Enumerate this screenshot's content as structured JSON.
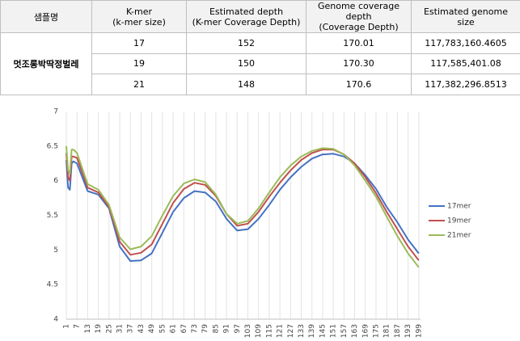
{
  "table": {
    "header": [
      "샘플명",
      "K-mer\n(k-mer size)",
      "Estimated depth\n(K-mer Coverage Depth)",
      "Genome coverage depth\n(Coverage Depth)",
      "Estimated genome\nsize"
    ],
    "sample": "멋조롱박딱정벌레",
    "rows": [
      [
        "17",
        "152",
        "170.01",
        "117,783,160.4605"
      ],
      [
        "19",
        "150",
        "170.30",
        "117,585,401.08"
      ],
      [
        "21",
        "148",
        "170.6",
        "117,382,296.8513"
      ]
    ]
  },
  "chart_data": {
    "type": "line",
    "x": [
      1,
      2,
      3,
      4,
      5,
      7,
      13,
      19,
      25,
      31,
      37,
      43,
      49,
      55,
      61,
      67,
      73,
      79,
      85,
      91,
      97,
      103,
      109,
      115,
      121,
      127,
      133,
      139,
      145,
      151,
      157,
      163,
      169,
      175,
      181,
      187,
      193,
      199
    ],
    "series": [
      {
        "name": "17mer",
        "color": "#4472c4",
        "values": [
          6.3,
          5.9,
          5.87,
          6.25,
          6.28,
          6.25,
          5.85,
          5.8,
          5.6,
          5.05,
          4.84,
          4.85,
          4.95,
          5.25,
          5.55,
          5.75,
          5.85,
          5.83,
          5.7,
          5.45,
          5.28,
          5.3,
          5.45,
          5.65,
          5.87,
          6.05,
          6.2,
          6.32,
          6.38,
          6.39,
          6.35,
          6.25,
          6.08,
          5.88,
          5.62,
          5.4,
          5.15,
          4.95
        ]
      },
      {
        "name": "19mer",
        "color": "#c0504d",
        "values": [
          6.4,
          6.05,
          6.0,
          6.35,
          6.35,
          6.33,
          5.9,
          5.83,
          5.62,
          5.12,
          4.93,
          4.96,
          5.08,
          5.38,
          5.68,
          5.88,
          5.97,
          5.94,
          5.78,
          5.52,
          5.35,
          5.38,
          5.55,
          5.77,
          5.97,
          6.15,
          6.3,
          6.4,
          6.45,
          6.45,
          6.38,
          6.25,
          6.05,
          5.82,
          5.55,
          5.3,
          5.05,
          4.85
        ]
      },
      {
        "name": "21mer",
        "color": "#9bbb59",
        "values": [
          6.5,
          6.15,
          6.1,
          6.45,
          6.45,
          6.4,
          5.95,
          5.87,
          5.65,
          5.18,
          5.01,
          5.05,
          5.2,
          5.5,
          5.78,
          5.96,
          6.02,
          5.98,
          5.8,
          5.52,
          5.38,
          5.42,
          5.6,
          5.83,
          6.05,
          6.22,
          6.35,
          6.43,
          6.47,
          6.46,
          6.38,
          6.22,
          6.0,
          5.77,
          5.48,
          5.2,
          4.95,
          4.75
        ]
      }
    ],
    "xlim": [
      1,
      200
    ],
    "xticks": [
      1,
      7,
      13,
      19,
      25,
      31,
      37,
      43,
      49,
      55,
      61,
      67,
      73,
      79,
      85,
      91,
      97,
      103,
      109,
      115,
      121,
      127,
      133,
      139,
      145,
      151,
      157,
      163,
      169,
      175,
      181,
      187,
      193,
      199
    ],
    "ylim": [
      4,
      7
    ],
    "yticks": [
      4,
      4.5,
      5,
      5.5,
      6,
      6.5,
      7
    ],
    "xgrid": true,
    "legend": "right"
  }
}
